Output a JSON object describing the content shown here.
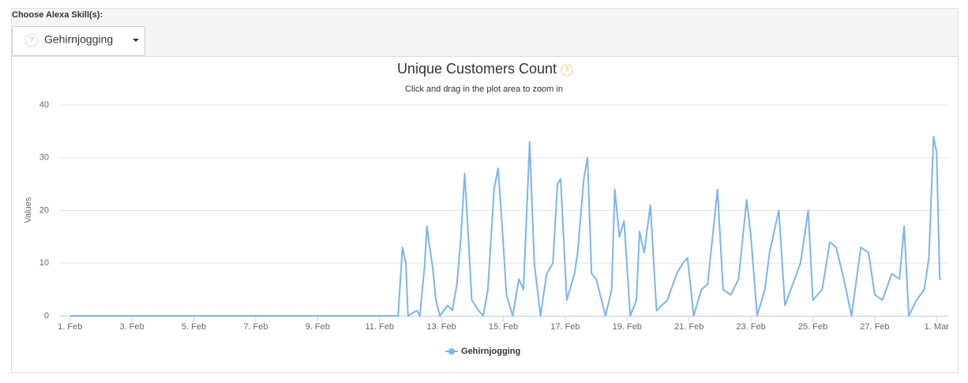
{
  "selector": {
    "label": "Choose Alexa Skill(s):",
    "selected": "Gehirnjogging",
    "help_icon": "?"
  },
  "chart_data": {
    "type": "line",
    "title": "Unique Customers Count",
    "subtitle": "Click and drag in the plot area to zoom in",
    "ylabel": "Values",
    "x": [
      0,
      10.6,
      10.74,
      10.85,
      10.92,
      11.2,
      11.3,
      11.45,
      11.53,
      11.62,
      11.72,
      11.82,
      11.95,
      12.2,
      12.35,
      12.5,
      12.63,
      12.75,
      12.85,
      12.98,
      13.2,
      13.35,
      13.5,
      13.7,
      13.83,
      13.95,
      14.1,
      14.3,
      14.5,
      14.65,
      14.85,
      15.0,
      15.2,
      15.4,
      15.6,
      15.75,
      15.85,
      16.05,
      16.3,
      16.4,
      16.6,
      16.72,
      16.85,
      17.0,
      17.3,
      17.5,
      17.6,
      17.75,
      17.9,
      18.1,
      18.3,
      18.4,
      18.55,
      18.75,
      18.95,
      19.3,
      19.6,
      19.8,
      19.95,
      20.15,
      20.4,
      20.6,
      20.92,
      21.1,
      21.35,
      21.6,
      21.86,
      22.0,
      22.2,
      22.45,
      22.6,
      22.9,
      23.1,
      23.35,
      23.6,
      23.85,
      24.0,
      24.3,
      24.55,
      24.75,
      25.0,
      25.25,
      25.55,
      25.8,
      26.0,
      26.25,
      26.55,
      26.8,
      26.95,
      27.1,
      27.35,
      27.6,
      27.75,
      27.9,
      28.0,
      28.1,
      28.15
    ],
    "series": [
      {
        "name": "Gehirnjogging",
        "color": "#7cb5ec",
        "values": [
          0,
          0,
          13,
          10,
          0,
          1,
          0,
          9,
          17,
          13,
          9,
          3,
          0,
          2,
          1,
          6,
          15,
          27,
          17,
          3,
          1,
          0,
          5,
          24,
          28,
          18,
          4,
          0,
          7,
          5,
          33,
          10,
          0,
          8,
          10,
          25,
          26,
          3,
          8,
          12,
          26,
          30,
          8,
          7,
          0,
          5,
          24,
          15,
          18,
          0,
          3,
          16,
          12,
          21,
          1,
          3,
          8,
          10,
          11,
          0,
          5,
          6,
          24,
          5,
          4,
          7,
          22,
          15,
          0,
          5,
          12,
          20,
          2,
          6,
          10,
          20,
          3,
          5,
          14,
          13,
          7,
          0,
          13,
          12,
          4,
          3,
          8,
          7,
          17,
          0,
          3,
          5,
          11,
          34,
          31,
          7,
          7
        ]
      }
    ],
    "xlim": [
      -0.35,
      28.35
    ],
    "xticks": [
      {
        "value": 0,
        "label": "1. Feb"
      },
      {
        "value": 2,
        "label": "3. Feb"
      },
      {
        "value": 4,
        "label": "5. Feb"
      },
      {
        "value": 6,
        "label": "7. Feb"
      },
      {
        "value": 8,
        "label": "9. Feb"
      },
      {
        "value": 10,
        "label": "11. Feb"
      },
      {
        "value": 12,
        "label": "13. Feb"
      },
      {
        "value": 14,
        "label": "15. Feb"
      },
      {
        "value": 16,
        "label": "17. Feb"
      },
      {
        "value": 18,
        "label": "19. Feb"
      },
      {
        "value": 20,
        "label": "21. Feb"
      },
      {
        "value": 22,
        "label": "23. Feb"
      },
      {
        "value": 24,
        "label": "25. Feb"
      },
      {
        "value": 26,
        "label": "27. Feb"
      },
      {
        "value": 28,
        "label": "1. Mar"
      }
    ],
    "ylim": [
      0,
      40
    ],
    "yticks": [
      0,
      10,
      20,
      30,
      40
    ],
    "grid": true,
    "legend": "bottom"
  }
}
